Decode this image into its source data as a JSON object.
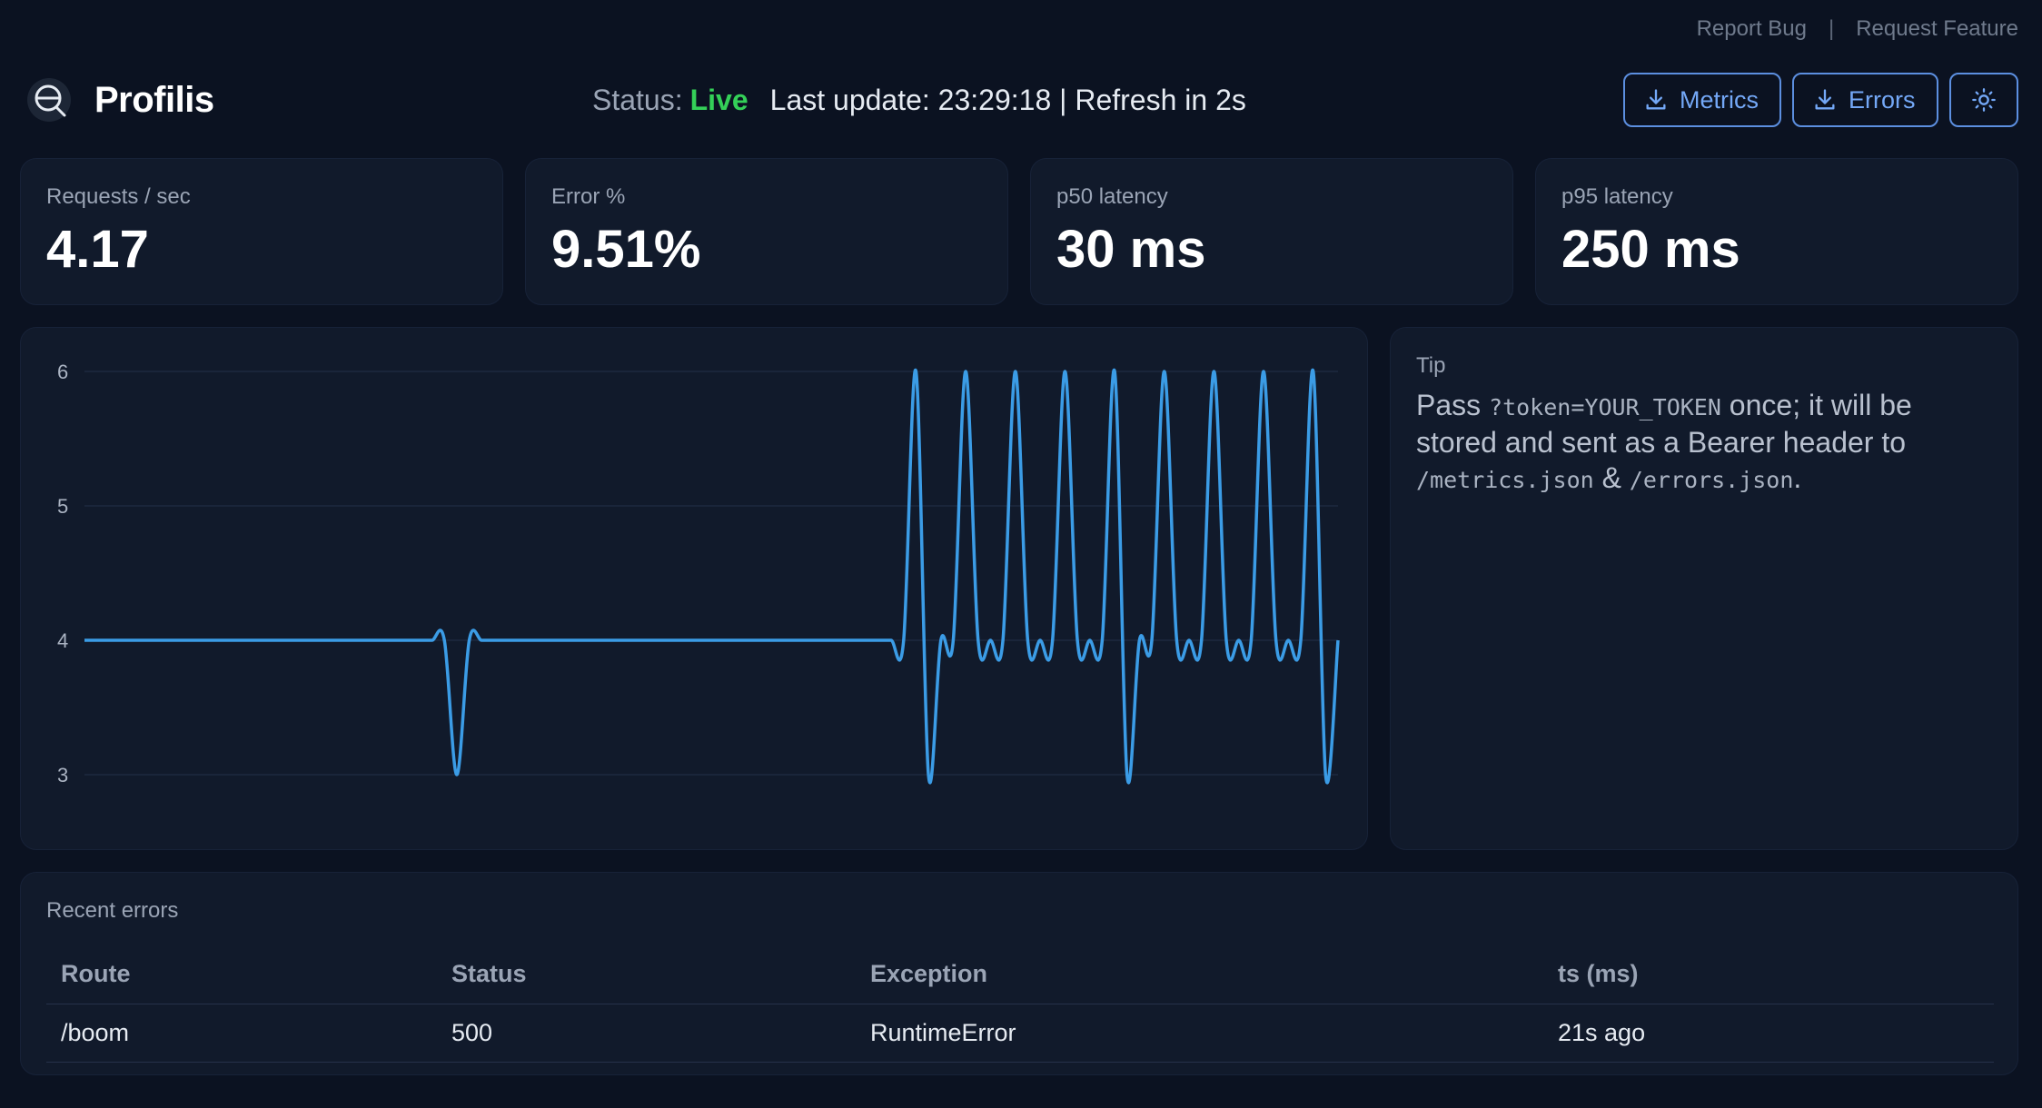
{
  "top_links": {
    "report_bug": "Report Bug",
    "separator": "|",
    "request_feature": "Request Feature"
  },
  "app": {
    "name": "Profilis"
  },
  "status": {
    "label": "Status:",
    "value": "Live",
    "last_update": "Last update: 23:29:18 | Refresh in 2s"
  },
  "actions": {
    "metrics_label": "Metrics",
    "errors_label": "Errors",
    "theme_icon": "sun-icon"
  },
  "stats": [
    {
      "label": "Requests / sec",
      "value": "4.17"
    },
    {
      "label": "Error %",
      "value": "9.51%"
    },
    {
      "label": "p50 latency",
      "value": "30 ms"
    },
    {
      "label": "p95 latency",
      "value": "250 ms"
    }
  ],
  "chart_data": {
    "type": "line",
    "ylim": [
      3,
      6
    ],
    "yticks": [
      "3",
      "4",
      "5",
      "6"
    ],
    "grid": true,
    "color": "#3b9ce6",
    "series": [
      {
        "values": [
          4,
          4,
          4,
          4,
          4,
          4,
          4,
          4,
          4,
          4,
          4,
          4,
          4,
          4,
          4,
          4,
          4,
          4,
          4,
          4,
          4,
          4,
          4,
          4,
          4,
          4,
          4,
          4,
          4,
          4,
          3,
          4,
          4,
          4,
          4,
          4,
          4,
          4,
          4,
          4,
          4,
          4,
          4,
          4,
          4,
          4,
          4,
          4,
          4,
          4,
          4,
          4,
          4,
          4,
          4,
          4,
          4,
          4,
          4,
          4,
          4,
          4,
          4,
          4,
          4,
          4,
          4,
          6,
          3,
          4,
          4,
          6,
          4,
          4,
          4,
          6,
          4,
          4,
          4,
          6,
          4,
          4,
          4,
          6,
          3,
          4,
          4,
          6,
          4,
          4,
          4,
          6,
          4,
          4,
          4,
          6,
          4,
          4,
          4,
          6,
          3,
          4
        ]
      }
    ]
  },
  "tip": {
    "label": "Tip",
    "pre": "Pass ",
    "code1": "?token=YOUR_TOKEN",
    "mid": " once; it will be stored and sent as a Bearer header to ",
    "code2": "/metrics.json",
    "amp": " & ",
    "code3": "/errors.json",
    "end": "."
  },
  "errors": {
    "label": "Recent errors",
    "columns": [
      "Route",
      "Status",
      "Exception",
      "ts (ms)"
    ],
    "rows": [
      [
        "/boom",
        "500",
        "RuntimeError",
        "21s ago"
      ]
    ]
  },
  "colors": {
    "accent": "#74a8f7",
    "live": "#34d058",
    "line": "#3b9ce6",
    "bg": "#0b1221",
    "card": "#111a2b"
  }
}
